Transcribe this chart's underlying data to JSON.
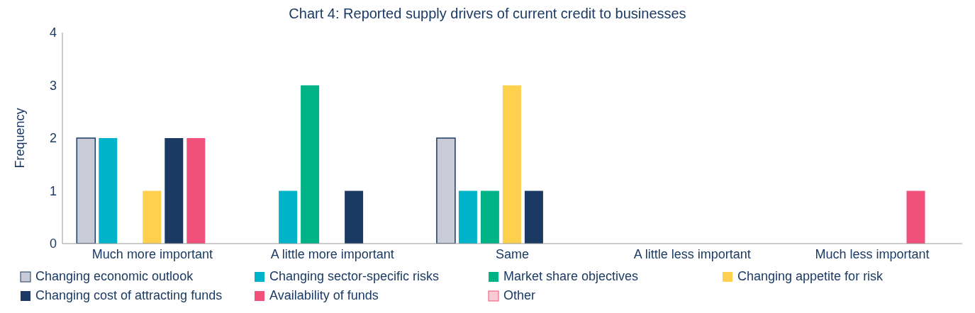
{
  "chart_data": {
    "type": "bar",
    "title": "Chart 4: Reported supply drivers of current credit to businesses",
    "ylabel": "Frequency",
    "categories": [
      "Much more important",
      "A little more important",
      "Same",
      "A little less important",
      "Much less important"
    ],
    "series": [
      {
        "name": "Changing economic outlook",
        "color": "#c9ccd6",
        "values": [
          2,
          0,
          2,
          0,
          0
        ]
      },
      {
        "name": "Changing sector-specific risks",
        "color": "#00b3c9",
        "values": [
          2,
          1,
          1,
          0,
          0
        ]
      },
      {
        "name": "Market share objectives",
        "color": "#00b386",
        "values": [
          0,
          3,
          1,
          0,
          0
        ]
      },
      {
        "name": "Changing appetite for risk",
        "color": "#ffd04d",
        "values": [
          1,
          0,
          3,
          0,
          0
        ]
      },
      {
        "name": "Changing cost of attracting funds",
        "color": "#1b3a63",
        "values": [
          2,
          1,
          1,
          0,
          0
        ]
      },
      {
        "name": "Availability of funds",
        "color": "#f0507a",
        "values": [
          2,
          0,
          0,
          0,
          1
        ]
      },
      {
        "name": "Other",
        "color": "#f9c9d4",
        "values": [
          0,
          0,
          0,
          0,
          0
        ]
      }
    ],
    "ylim": [
      0,
      4
    ],
    "yticks": [
      0,
      1,
      2,
      3,
      4
    ],
    "grid": false,
    "legend": "bottom"
  }
}
